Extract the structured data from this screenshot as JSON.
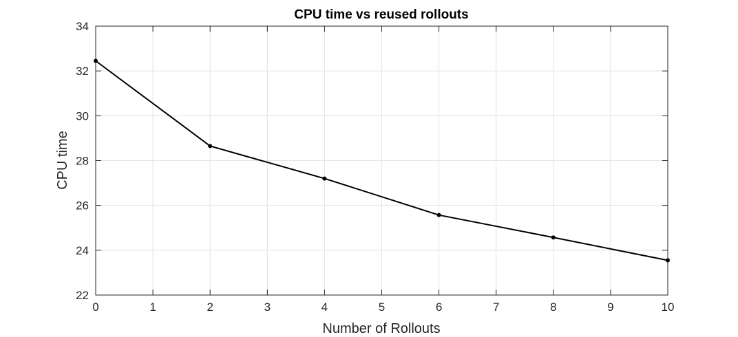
{
  "chart_data": {
    "type": "line",
    "title": "CPU time vs reused rollouts",
    "xlabel": "Number of Rollouts",
    "ylabel": "CPU time",
    "xlim": [
      0,
      10
    ],
    "ylim": [
      22,
      34
    ],
    "xticks": [
      0,
      1,
      2,
      3,
      4,
      5,
      6,
      7,
      8,
      9,
      10
    ],
    "yticks": [
      22,
      24,
      26,
      28,
      30,
      32,
      34
    ],
    "grid": true,
    "series": [
      {
        "x": [
          0,
          2,
          4,
          6,
          8,
          10
        ],
        "y": [
          32.45,
          28.65,
          27.2,
          25.57,
          24.57,
          23.55
        ],
        "color": "#000000",
        "marker": "dot"
      }
    ]
  }
}
